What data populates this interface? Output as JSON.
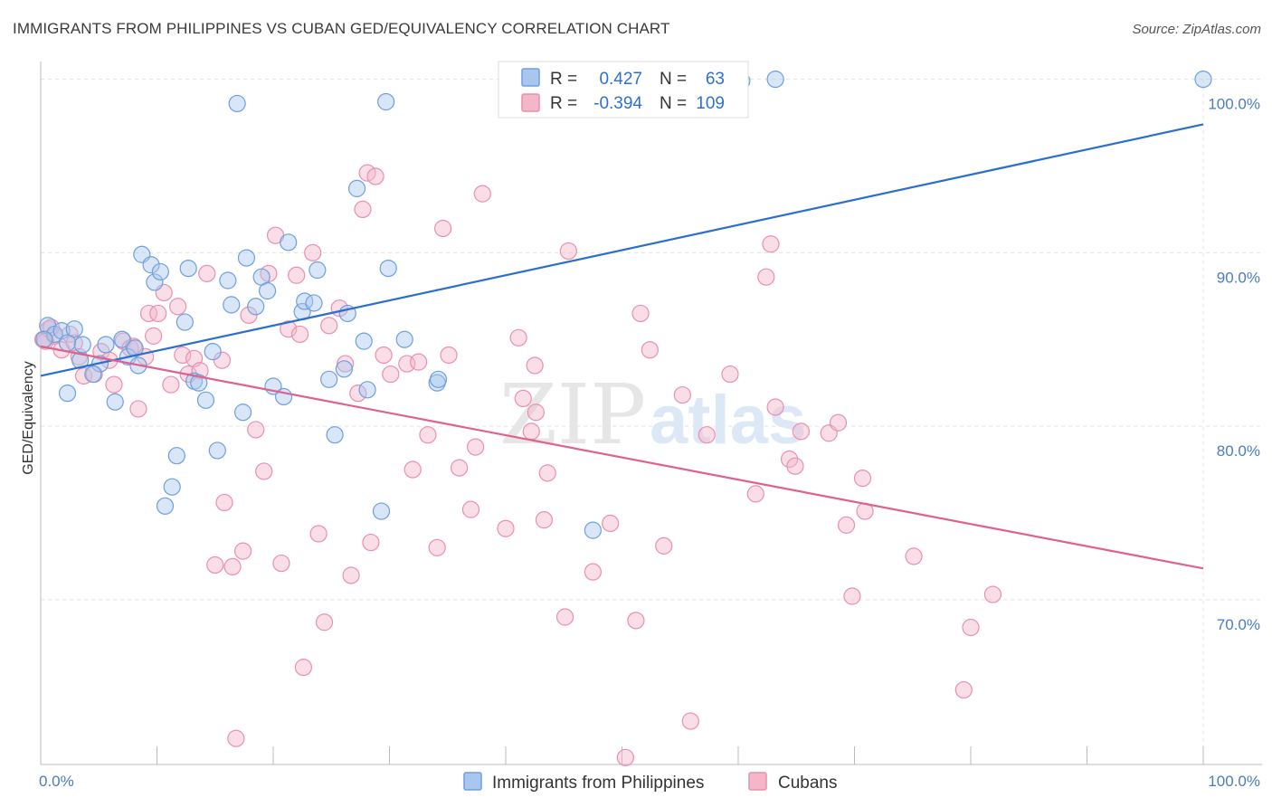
{
  "header": {
    "title": "IMMIGRANTS FROM PHILIPPINES VS CUBAN GED/EQUIVALENCY CORRELATION CHART",
    "source": "Source: ZipAtlas.com"
  },
  "watermark": {
    "zip": "ZIP",
    "atlas": "atlas"
  },
  "legend": {
    "rows": [
      {
        "r_label": "R =",
        "r_value": "0.427",
        "n_label": "N =",
        "n_value": "63",
        "color": "#a9c7ee"
      },
      {
        "r_label": "R =",
        "r_value": "-0.394",
        "n_label": "N =",
        "n_value": "109",
        "color": "#f4b6c9"
      }
    ]
  },
  "bottom_legend": [
    {
      "label": "Immigrants from Philippines",
      "color": "#a9c7ee"
    },
    {
      "label": "Cubans",
      "color": "#f4b6c9"
    }
  ],
  "chart_data": {
    "type": "scatter",
    "title": "IMMIGRANTS FROM PHILIPPINES VS CUBAN GED/EQUIVALENCY CORRELATION CHART",
    "xlabel": "",
    "ylabel": "GED/Equivalency",
    "xlim": [
      0,
      100
    ],
    "ylim": [
      60.5,
      100.5
    ],
    "x_tick_labels": [
      "0.0%",
      "100.0%"
    ],
    "y_ticks": [
      70,
      80,
      90,
      100
    ],
    "y_tick_labels": [
      "70.0%",
      "80.0%",
      "90.0%",
      "100.0%"
    ],
    "grid": true,
    "colors": {
      "blue_fill": "#a9c7ee",
      "blue_stroke": "#6d9fe0",
      "blue_line": "#2a6fcf",
      "pink_fill": "#f4b6c9",
      "pink_stroke": "#e890ad",
      "pink_line": "#e0608f"
    },
    "series": [
      {
        "name": "Immigrants from Philippines",
        "trend": {
          "x": [
            0,
            100
          ],
          "y": [
            82.9,
            97.4
          ]
        },
        "points": [
          [
            0.6,
            85.8
          ],
          [
            1.2,
            85.3
          ],
          [
            1.8,
            85.5
          ],
          [
            2.3,
            84.8
          ],
          [
            2.9,
            85.6
          ],
          [
            3.4,
            83.8
          ],
          [
            3.6,
            84.7
          ],
          [
            5.1,
            83.6
          ],
          [
            5.6,
            84.7
          ],
          [
            4.5,
            83.0
          ],
          [
            2.3,
            81.9
          ],
          [
            6.4,
            81.4
          ],
          [
            7.0,
            85.0
          ],
          [
            7.5,
            84.0
          ],
          [
            8.1,
            84.5
          ],
          [
            8.4,
            83.5
          ],
          [
            8.7,
            89.9
          ],
          [
            9.5,
            89.3
          ],
          [
            9.8,
            88.3
          ],
          [
            10.3,
            88.9
          ],
          [
            10.7,
            75.4
          ],
          [
            11.3,
            76.5
          ],
          [
            11.7,
            78.3
          ],
          [
            12.4,
            86.0
          ],
          [
            12.7,
            89.1
          ],
          [
            13.2,
            82.6
          ],
          [
            13.6,
            82.5
          ],
          [
            14.2,
            81.5
          ],
          [
            14.8,
            84.3
          ],
          [
            15.2,
            78.6
          ],
          [
            16.1,
            88.4
          ],
          [
            16.4,
            87.0
          ],
          [
            16.9,
            98.6
          ],
          [
            17.4,
            80.8
          ],
          [
            17.7,
            89.7
          ],
          [
            18.5,
            86.9
          ],
          [
            19.0,
            88.6
          ],
          [
            19.5,
            87.8
          ],
          [
            20.0,
            82.3
          ],
          [
            20.9,
            81.7
          ],
          [
            21.3,
            90.6
          ],
          [
            22.5,
            86.6
          ],
          [
            22.7,
            87.2
          ],
          [
            23.5,
            87.1
          ],
          [
            23.8,
            89.0
          ],
          [
            24.8,
            82.7
          ],
          [
            25.3,
            79.5
          ],
          [
            26.1,
            83.3
          ],
          [
            26.4,
            86.5
          ],
          [
            27.2,
            93.7
          ],
          [
            27.8,
            84.9
          ],
          [
            28.1,
            82.1
          ],
          [
            29.3,
            75.1
          ],
          [
            29.7,
            98.7
          ],
          [
            29.9,
            89.1
          ],
          [
            31.3,
            85.0
          ],
          [
            34.1,
            82.5
          ],
          [
            34.2,
            82.7
          ],
          [
            47.5,
            74.0
          ],
          [
            60.3,
            99.9
          ],
          [
            63.2,
            100.0
          ],
          [
            100.0,
            100.0
          ],
          [
            0.3,
            85.0
          ]
        ]
      },
      {
        "name": "Cubans",
        "trend": {
          "x": [
            0,
            100
          ],
          "y": [
            84.6,
            71.8
          ]
        },
        "points": [
          [
            0.2,
            85.0
          ],
          [
            0.7,
            85.6
          ],
          [
            1.2,
            85.2
          ],
          [
            1.8,
            84.4
          ],
          [
            2.5,
            85.3
          ],
          [
            2.9,
            84.8
          ],
          [
            3.3,
            84.0
          ],
          [
            3.7,
            82.9
          ],
          [
            4.6,
            83.0
          ],
          [
            5.2,
            84.3
          ],
          [
            5.9,
            83.8
          ],
          [
            6.3,
            82.4
          ],
          [
            7.1,
            84.9
          ],
          [
            7.7,
            84.5
          ],
          [
            8.0,
            84.6
          ],
          [
            8.4,
            81.0
          ],
          [
            9.0,
            84.0
          ],
          [
            9.3,
            86.5
          ],
          [
            9.7,
            85.2
          ],
          [
            10.1,
            86.5
          ],
          [
            10.6,
            87.7
          ],
          [
            11.2,
            82.4
          ],
          [
            11.8,
            86.9
          ],
          [
            12.2,
            84.1
          ],
          [
            12.7,
            83.0
          ],
          [
            13.2,
            83.9
          ],
          [
            13.7,
            83.2
          ],
          [
            14.3,
            88.8
          ],
          [
            15.0,
            72.0
          ],
          [
            15.6,
            83.8
          ],
          [
            15.8,
            75.6
          ],
          [
            16.5,
            71.9
          ],
          [
            16.8,
            62.0
          ],
          [
            17.4,
            72.8
          ],
          [
            17.9,
            86.4
          ],
          [
            18.5,
            79.8
          ],
          [
            19.2,
            77.4
          ],
          [
            19.6,
            88.8
          ],
          [
            20.2,
            91.0
          ],
          [
            20.7,
            72.1
          ],
          [
            21.3,
            85.6
          ],
          [
            22.0,
            88.7
          ],
          [
            22.3,
            85.3
          ],
          [
            22.6,
            66.1
          ],
          [
            23.4,
            90.0
          ],
          [
            23.9,
            73.8
          ],
          [
            24.4,
            68.7
          ],
          [
            24.8,
            85.8
          ],
          [
            25.7,
            86.8
          ],
          [
            26.2,
            83.6
          ],
          [
            26.7,
            71.4
          ],
          [
            27.3,
            81.9
          ],
          [
            27.7,
            92.5
          ],
          [
            28.1,
            94.6
          ],
          [
            28.4,
            73.3
          ],
          [
            28.8,
            94.4
          ],
          [
            29.5,
            84.1
          ],
          [
            30.1,
            83.0
          ],
          [
            31.5,
            83.6
          ],
          [
            32.0,
            77.5
          ],
          [
            32.5,
            83.7
          ],
          [
            33.3,
            79.5
          ],
          [
            34.1,
            73.0
          ],
          [
            34.6,
            91.4
          ],
          [
            35.1,
            84.1
          ],
          [
            36.0,
            77.6
          ],
          [
            37.0,
            75.2
          ],
          [
            37.4,
            78.8
          ],
          [
            38.0,
            93.4
          ],
          [
            40.0,
            74.1
          ],
          [
            41.1,
            85.1
          ],
          [
            41.5,
            81.6
          ],
          [
            42.2,
            79.7
          ],
          [
            42.5,
            83.5
          ],
          [
            42.6,
            80.8
          ],
          [
            43.3,
            74.6
          ],
          [
            43.6,
            77.3
          ],
          [
            45.1,
            69.0
          ],
          [
            45.4,
            90.1
          ],
          [
            47.5,
            71.6
          ],
          [
            49.0,
            74.4
          ],
          [
            50.3,
            60.9
          ],
          [
            51.2,
            68.8
          ],
          [
            51.6,
            86.5
          ],
          [
            52.4,
            84.4
          ],
          [
            53.6,
            73.1
          ],
          [
            55.2,
            81.8
          ],
          [
            55.9,
            63.0
          ],
          [
            57.3,
            79.5
          ],
          [
            59.3,
            83.0
          ],
          [
            61.5,
            76.1
          ],
          [
            62.4,
            88.6
          ],
          [
            62.8,
            90.5
          ],
          [
            63.2,
            81.1
          ],
          [
            64.4,
            78.1
          ],
          [
            64.9,
            77.7
          ],
          [
            65.4,
            79.7
          ],
          [
            67.8,
            79.6
          ],
          [
            68.6,
            80.2
          ],
          [
            69.3,
            74.3
          ],
          [
            69.8,
            70.2
          ],
          [
            70.7,
            77.0
          ],
          [
            70.9,
            75.1
          ],
          [
            75.1,
            72.5
          ],
          [
            79.4,
            64.8
          ],
          [
            80.0,
            68.4
          ],
          [
            81.9,
            70.3
          ],
          [
            0.4,
            84.9
          ],
          [
            0.9,
            85.7
          ]
        ]
      }
    ]
  }
}
